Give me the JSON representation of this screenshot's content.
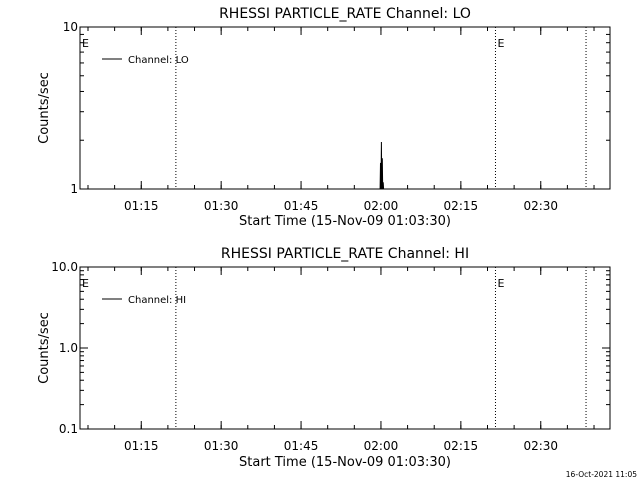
{
  "chart_data": [
    {
      "type": "line",
      "title": "RHESSI PARTICLE_RATE Channel: LO",
      "xlabel": "Start Time (15-Nov-09 01:03:30)",
      "ylabel": "Counts/sec",
      "y_scale": "log",
      "ylim": [
        1,
        10
      ],
      "xlim": [
        "01:03:30",
        "02:43:00"
      ],
      "x_ticks": [
        "01:15",
        "01:30",
        "01:45",
        "02:00",
        "02:15",
        "02:30"
      ],
      "y_ticks": [
        "1",
        "10"
      ],
      "grid": false,
      "legend": {
        "position": "top-left",
        "entries": [
          "Channel: LO"
        ]
      },
      "series": [
        {
          "name": "Channel: LO",
          "x": [
            "01:59:50",
            "01:59:55",
            "02:00:00",
            "02:00:05",
            "02:00:10",
            "02:00:15",
            "02:00:20",
            "02:00:25",
            "02:00:30"
          ],
          "y": [
            1,
            1.45,
            1,
            1.95,
            1,
            1.55,
            1,
            1.1,
            1
          ]
        }
      ],
      "vertical_markers": [
        {
          "x": "01:21:30",
          "label": ""
        },
        {
          "x": "02:21:30",
          "label": "E"
        },
        {
          "x": "02:38:30",
          "label": ""
        }
      ],
      "corner_label": "E"
    },
    {
      "type": "line",
      "title": "RHESSI PARTICLE_RATE Channel: HI",
      "xlabel": "Start Time (15-Nov-09 01:03:30)",
      "ylabel": "Counts/sec",
      "y_scale": "log",
      "ylim": [
        0.1,
        10
      ],
      "xlim": [
        "01:03:30",
        "02:43:00"
      ],
      "x_ticks": [
        "01:15",
        "01:30",
        "01:45",
        "02:00",
        "02:15",
        "02:30"
      ],
      "y_ticks": [
        "0.1",
        "1.0",
        "10.0"
      ],
      "grid": false,
      "legend": {
        "position": "top-left",
        "entries": [
          "Channel: HI"
        ]
      },
      "series": [
        {
          "name": "Channel: HI",
          "x": [],
          "y": []
        }
      ],
      "vertical_markers": [
        {
          "x": "01:21:30",
          "label": ""
        },
        {
          "x": "02:21:30",
          "label": "E"
        },
        {
          "x": "02:38:30",
          "label": ""
        }
      ],
      "corner_label": "E"
    }
  ],
  "footer": {
    "timestamp": "16-Oct-2021 11:05"
  }
}
